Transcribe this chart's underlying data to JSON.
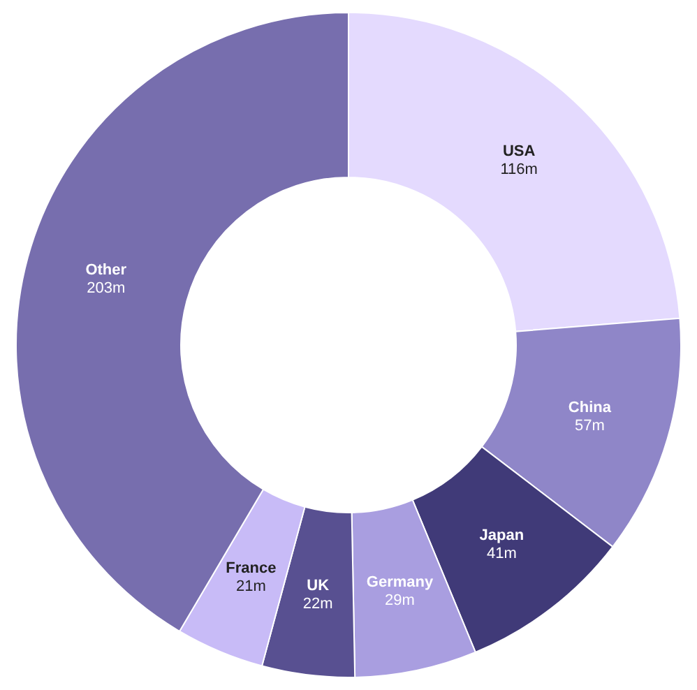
{
  "chart_data": {
    "type": "donut",
    "categories": [
      "USA",
      "China",
      "Japan",
      "Germany",
      "UK",
      "France",
      "Other"
    ],
    "values": [
      116,
      57,
      41,
      29,
      22,
      21,
      203
    ],
    "value_labels": [
      "116m",
      "57m",
      "41m",
      "29m",
      "22m",
      "21m",
      "203m"
    ],
    "colors": [
      "#e4dafe",
      "#8f86c8",
      "#403a78",
      "#a99ee0",
      "#585091",
      "#c8bbf7",
      "#776eae"
    ]
  }
}
